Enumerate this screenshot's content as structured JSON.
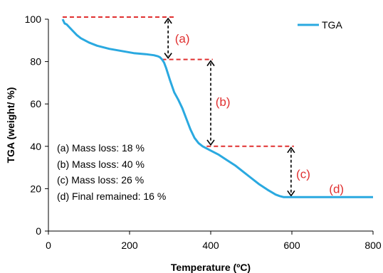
{
  "chart_data": {
    "type": "line",
    "xlabel": "Temperature (ºC)",
    "ylabel": "TGA (weight/ %)",
    "xlim": [
      0,
      800
    ],
    "ylim": [
      0,
      100
    ],
    "x_ticks": [
      "0",
      "200",
      "400",
      "600",
      "800"
    ],
    "y_ticks": [
      "0",
      "20",
      "40",
      "60",
      "80",
      "100"
    ],
    "grid": false,
    "legend_position": "top-right",
    "series": [
      {
        "name": "TGA",
        "color": "#2aa9e0",
        "x": [
          35,
          40,
          45,
          50,
          60,
          70,
          80,
          100,
          120,
          150,
          180,
          210,
          240,
          260,
          270,
          275,
          280,
          285,
          290,
          300,
          310,
          320,
          330,
          340,
          350,
          360,
          370,
          380,
          390,
          400,
          420,
          440,
          460,
          480,
          500,
          520,
          540,
          560,
          570,
          580,
          600,
          650,
          700,
          750,
          800
        ],
        "y": [
          100,
          98,
          97.5,
          96.5,
          94.5,
          92.5,
          91,
          89,
          87.5,
          86,
          85,
          84,
          83.5,
          83,
          82.5,
          82,
          81,
          79.5,
          77,
          71,
          65.5,
          62,
          58,
          53,
          48,
          44,
          41.5,
          40,
          39,
          38,
          36,
          33.5,
          31,
          28,
          25,
          22,
          19.5,
          17.2,
          16.5,
          16,
          16,
          16,
          16,
          16,
          16
        ]
      }
    ],
    "reference_lines": [
      {
        "x1": 35,
        "x2": 315,
        "y": 101
      },
      {
        "x1": 280,
        "x2": 405,
        "y": 81
      },
      {
        "x1": 390,
        "x2": 605,
        "y": 40
      }
    ],
    "arrows": [
      {
        "x": 295,
        "y1": 101,
        "y2": 81
      },
      {
        "x": 400,
        "y1": 81,
        "y2": 40
      },
      {
        "x": 598,
        "y1": 40,
        "y2": 16
      }
    ],
    "region_labels": [
      {
        "text": "(a)",
        "x": 330,
        "y": 91
      },
      {
        "text": "(b)",
        "x": 430,
        "y": 61
      },
      {
        "text": "(c)",
        "x": 628,
        "y": 27
      },
      {
        "text": "(d)",
        "x": 710,
        "y": 20
      }
    ],
    "annotations": [
      "(a) Mass loss: 18 %",
      "(b) Mass loss: 40 %",
      "(c) Mass loss: 26 %",
      "(d) Final remained: 16 %"
    ],
    "annotation_color": "#e03030"
  }
}
